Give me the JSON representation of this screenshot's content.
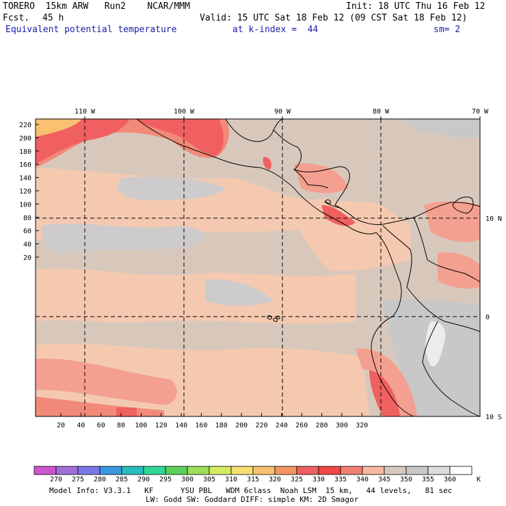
{
  "header": {
    "model": "TORERO  15km ARW   Run2    NCAR/MMM",
    "init": "Init: 18 UTC Thu 16 Feb 12",
    "fcst_label": "Fcst.",
    "fcst_value": "45 h",
    "valid": "Valid: 15 UTC Sat 18 Feb 12 (09 CST Sat 18 Feb 12)",
    "field": "Equivalent potential temperature",
    "level": "at k-index =  44",
    "smoothing": "sm= 2"
  },
  "map": {
    "top_longitude_labels": [
      "110 W",
      "100 W",
      "90 W",
      "80 W",
      "70 W"
    ],
    "right_latitude_labels": [
      "10 N",
      "0",
      "10 S"
    ],
    "left_grid_labels": [
      "220",
      "200",
      "180",
      "160",
      "140",
      "120",
      "100",
      "80",
      "60",
      "40",
      "20"
    ],
    "bottom_grid_labels": [
      "20",
      "40",
      "60",
      "80",
      "100",
      "120",
      "140",
      "160",
      "180",
      "200",
      "220",
      "240",
      "260",
      "280",
      "300",
      "320"
    ],
    "grid_line_style": "dashed"
  },
  "colorbar": {
    "labels": [
      "270",
      "275",
      "280",
      "285",
      "290",
      "295",
      "300",
      "305",
      "310",
      "315",
      "320",
      "325",
      "330",
      "335",
      "340",
      "345",
      "350",
      "355",
      "360"
    ],
    "unit": "K",
    "colors": [
      "#cc55cc",
      "#a070d8",
      "#7878e6",
      "#3c96e0",
      "#28bcbc",
      "#30d898",
      "#5ccf5c",
      "#9ede58",
      "#d6ec60",
      "#f6e070",
      "#f8c070",
      "#f49462",
      "#f06060",
      "#f04848",
      "#f08070",
      "#f4b8a0",
      "#d8c8bc",
      "#c8c8c8",
      "#dcdcdc",
      "#ffffff"
    ]
  },
  "footer": {
    "line1": "Model Info: V3.3.1   KF      YSU PBL   WDM 6class  Noah LSM  15 km,   44 levels,   81 sec",
    "line2": "LW: Godd SW: Goddard DIFF: simple KM: 2D Smagor"
  }
}
